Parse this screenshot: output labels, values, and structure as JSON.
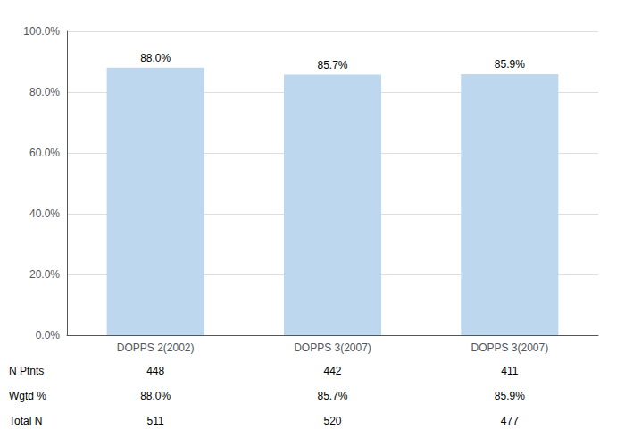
{
  "chart_data": {
    "type": "bar",
    "categories": [
      "DOPPS 2(2002)",
      "DOPPS 3(2007)",
      "DOPPS 3(2007)"
    ],
    "values": [
      88.0,
      85.7,
      85.9
    ],
    "value_labels": [
      "88.0%",
      "85.7%",
      "85.9%"
    ],
    "data_labels": true,
    "color": "#bdd7ee",
    "ylim": [
      0,
      100
    ],
    "yticks": [
      {
        "value": 0,
        "label": "0.0%"
      },
      {
        "value": 20,
        "label": "20.0%"
      },
      {
        "value": 40,
        "label": "40.0%"
      },
      {
        "value": 60,
        "label": "60.0%"
      },
      {
        "value": 80,
        "label": "80.0%"
      },
      {
        "value": 100,
        "label": "100.0%"
      }
    ],
    "grid": true,
    "table": [
      {
        "label": "N Ptnts",
        "values": [
          448,
          442,
          411
        ]
      },
      {
        "label": "Wgtd %",
        "values": [
          88.0,
          85.7,
          85.9
        ],
        "value_labels": [
          "88.0%",
          "85.7%",
          "85.9%"
        ]
      },
      {
        "label": "Total N",
        "values": [
          511,
          520,
          477
        ]
      }
    ]
  }
}
